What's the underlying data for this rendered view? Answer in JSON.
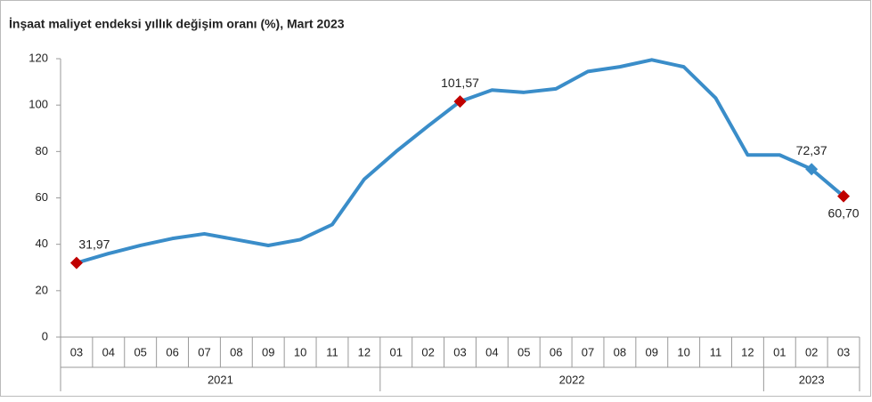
{
  "chart_data": {
    "type": "line",
    "title": "İnşaat maliyet endeksi yıllık değişim oranı (%), Mart 2023",
    "categories": [
      "03",
      "04",
      "05",
      "06",
      "07",
      "08",
      "09",
      "10",
      "11",
      "12",
      "01",
      "02",
      "03",
      "04",
      "05",
      "06",
      "07",
      "08",
      "09",
      "10",
      "11",
      "12",
      "01",
      "02",
      "03"
    ],
    "groups": [
      {
        "label": "2021",
        "count": 10
      },
      {
        "label": "2022",
        "count": 12
      },
      {
        "label": "2023",
        "count": 3
      }
    ],
    "series": [
      {
        "name": "İnşaat maliyet endeksi",
        "color": "#3a8dc9",
        "values": [
          31.97,
          36,
          39.5,
          42.5,
          44.5,
          42,
          39.5,
          42,
          48.5,
          68,
          80,
          91,
          101.57,
          106.5,
          105.5,
          107,
          114.5,
          116.5,
          119.5,
          116.5,
          103,
          78.5,
          78.5,
          72.37,
          60.7
        ],
        "value_labels": [
          "31,97",
          null,
          null,
          null,
          null,
          null,
          null,
          null,
          null,
          null,
          null,
          null,
          "101,57",
          null,
          null,
          null,
          null,
          null,
          null,
          null,
          null,
          null,
          null,
          "72,37",
          "60,70"
        ],
        "marker_colors": [
          "#c00000",
          null,
          null,
          null,
          null,
          null,
          null,
          null,
          null,
          null,
          null,
          null,
          "#c00000",
          null,
          null,
          null,
          null,
          null,
          null,
          null,
          null,
          null,
          null,
          "#3a8dc9",
          "#c00000"
        ]
      }
    ],
    "ylim": [
      0,
      120
    ],
    "yticks": [
      0,
      20,
      40,
      60,
      80,
      100,
      120
    ],
    "grid": false
  }
}
